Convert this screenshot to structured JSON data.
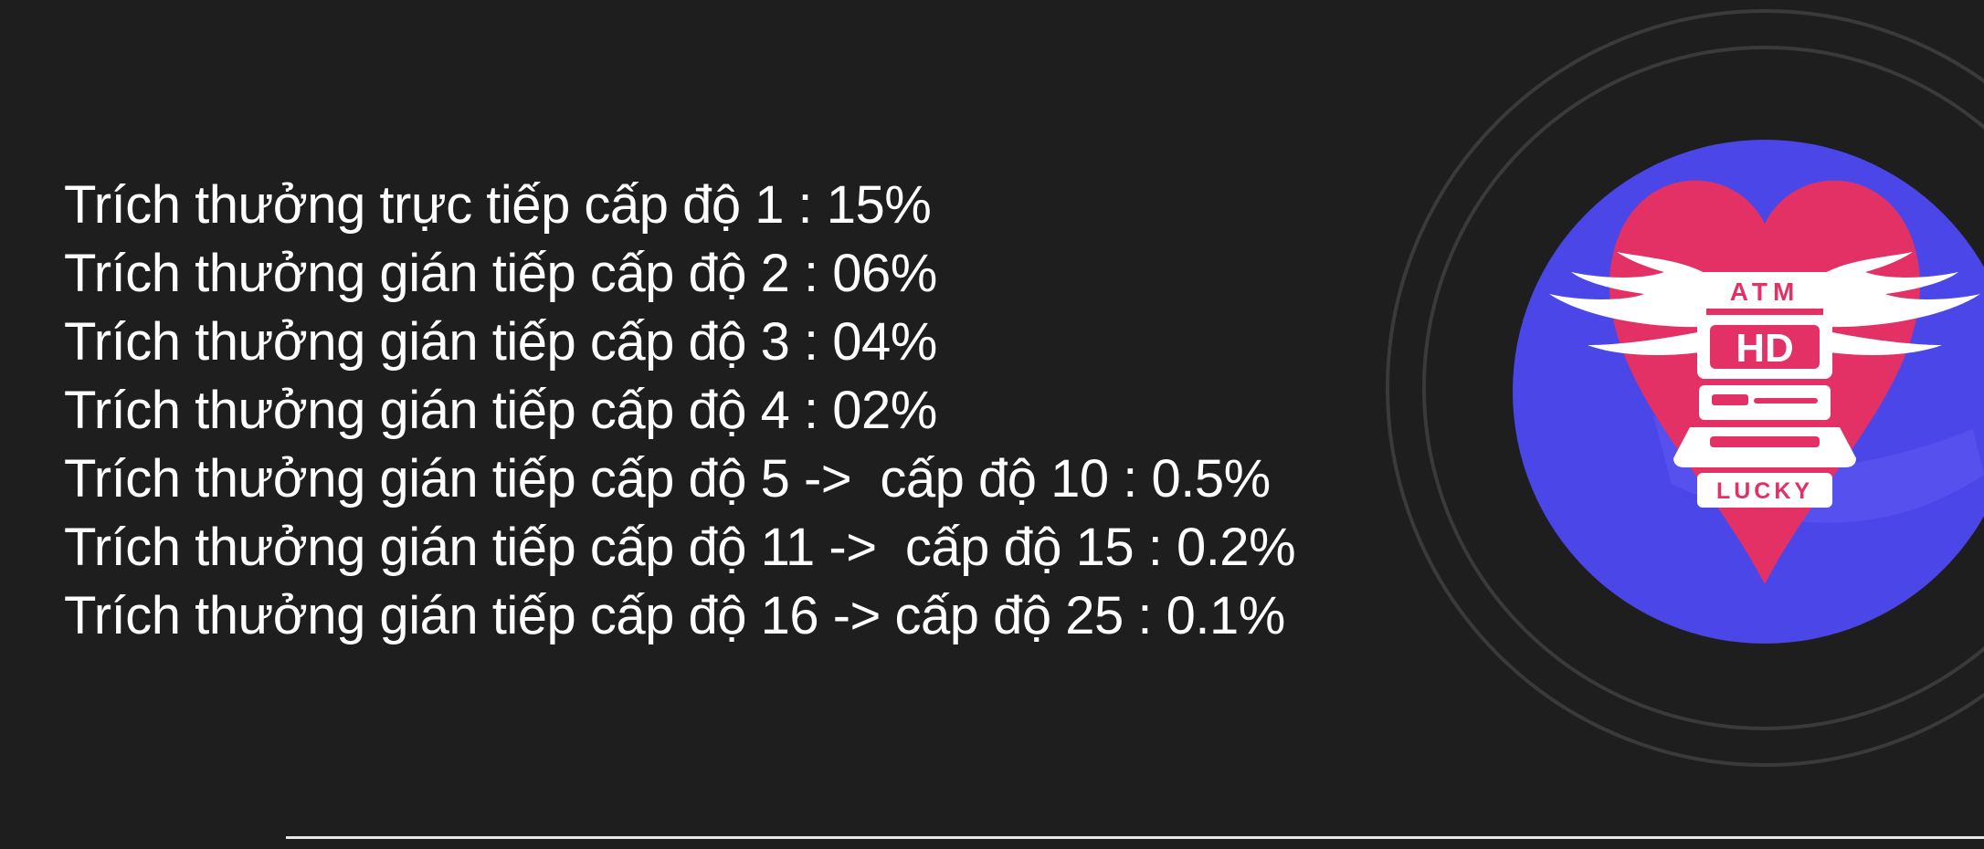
{
  "reward_lines": [
    "Trích thưởng trực tiếp cấp độ 1 : 15%",
    "Trích thưởng gián tiếp cấp độ 2 : 06%",
    "Trích thưởng gián tiếp cấp độ 3 : 04%",
    "Trích thưởng gián tiếp cấp độ 4 : 02%",
    "Trích thưởng gián tiếp cấp độ 5 ->  cấp độ 10 : 0.5%",
    "Trích thưởng gián tiếp cấp độ 11 ->  cấp độ 15 : 0.2%",
    "Trích thưởng gián tiếp cấp độ 16 -> cấp độ 25 : 0.1%"
  ],
  "logo": {
    "top_text": "ATM",
    "center_text": "HD",
    "bottom_text": "LUCKY",
    "colors": {
      "circle": "#4b46e8",
      "heart": "#e33166",
      "emblem": "#ffffff"
    }
  },
  "colors": {
    "background": "#1e1e1f",
    "text": "#ffffff",
    "rings": "#3a3a3c"
  }
}
